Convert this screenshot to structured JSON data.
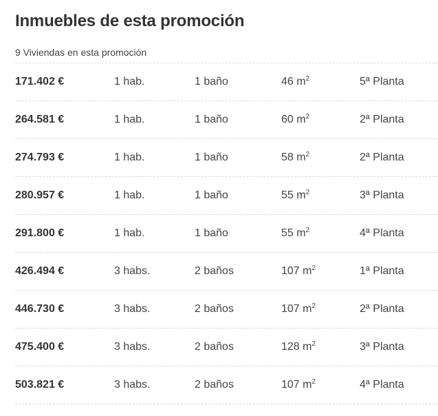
{
  "section": {
    "title": "Inmuebles de esta promoción",
    "count_text": "9 Viviendas en esta promoción"
  },
  "units": [
    {
      "price": "171.402 €",
      "rooms": "1 hab.",
      "baths": "1 baño",
      "size": "46 m",
      "size_unit_sup": "2",
      "floor": "5ª Planta"
    },
    {
      "price": "264.581 €",
      "rooms": "1 hab.",
      "baths": "1 baño",
      "size": "60 m",
      "size_unit_sup": "2",
      "floor": "2ª Planta"
    },
    {
      "price": "274.793 €",
      "rooms": "1 hab.",
      "baths": "1 baño",
      "size": "58 m",
      "size_unit_sup": "2",
      "floor": "2ª Planta"
    },
    {
      "price": "280.957 €",
      "rooms": "1 hab.",
      "baths": "1 baño",
      "size": "55 m",
      "size_unit_sup": "2",
      "floor": "3ª Planta"
    },
    {
      "price": "291.800 €",
      "rooms": "1 hab.",
      "baths": "1 baño",
      "size": "55 m",
      "size_unit_sup": "2",
      "floor": "4ª Planta"
    },
    {
      "price": "426.494 €",
      "rooms": "3 habs.",
      "baths": "2 baños",
      "size": "107 m",
      "size_unit_sup": "2",
      "floor": "1ª Planta"
    },
    {
      "price": "446.730 €",
      "rooms": "3 habs.",
      "baths": "2 baños",
      "size": "107 m",
      "size_unit_sup": "2",
      "floor": "2ª Planta"
    },
    {
      "price": "475.400 €",
      "rooms": "3 habs.",
      "baths": "2 baños",
      "size": "128 m",
      "size_unit_sup": "2",
      "floor": "3ª Planta"
    },
    {
      "price": "503.821 €",
      "rooms": "3 habs.",
      "baths": "2 baños",
      "size": "107 m",
      "size_unit_sup": "2",
      "floor": "4ª Planta"
    }
  ]
}
